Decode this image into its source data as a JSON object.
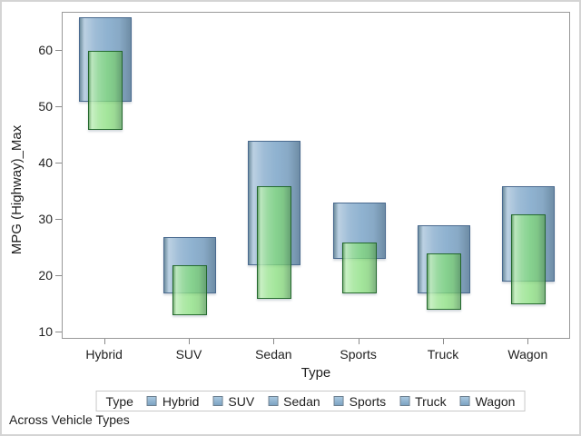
{
  "figure": {
    "footer": "Across Vehicle Types"
  },
  "chart_data": {
    "type": "bar",
    "subtype": "overlaid-range-bars",
    "title": "",
    "xlabel": "Type",
    "ylabel": "MPG (Highway)_Max",
    "categories": [
      "Hybrid",
      "SUV",
      "Sedan",
      "Sports",
      "Truck",
      "Wagon"
    ],
    "y_ticks": [
      10,
      20,
      30,
      40,
      50,
      60
    ],
    "ylim": [
      9,
      67
    ],
    "grid": false,
    "series": [
      {
        "name": "blue-range",
        "fill": "#8FB2D0",
        "border": "#4A6A8F",
        "ranges": [
          [
            51,
            66
          ],
          [
            17,
            27
          ],
          [
            22,
            44
          ],
          [
            23,
            33
          ],
          [
            17,
            29
          ],
          [
            19,
            36
          ]
        ]
      },
      {
        "name": "green-range",
        "fill": "rgba(132,221,122,0.74)",
        "border": "rgba(25,95,35,0.9)",
        "ranges": [
          [
            46,
            60
          ],
          [
            13,
            22
          ],
          [
            16,
            36
          ],
          [
            17,
            26
          ],
          [
            14,
            24
          ],
          [
            15,
            31
          ]
        ]
      }
    ],
    "legend": {
      "title": "Type",
      "position": "bottom",
      "swatch_color": "#85AECD",
      "entries": [
        {
          "label": "Hybrid"
        },
        {
          "label": "SUV"
        },
        {
          "label": "Sedan"
        },
        {
          "label": "Sports"
        },
        {
          "label": "Truck"
        },
        {
          "label": "Wagon"
        }
      ]
    }
  }
}
